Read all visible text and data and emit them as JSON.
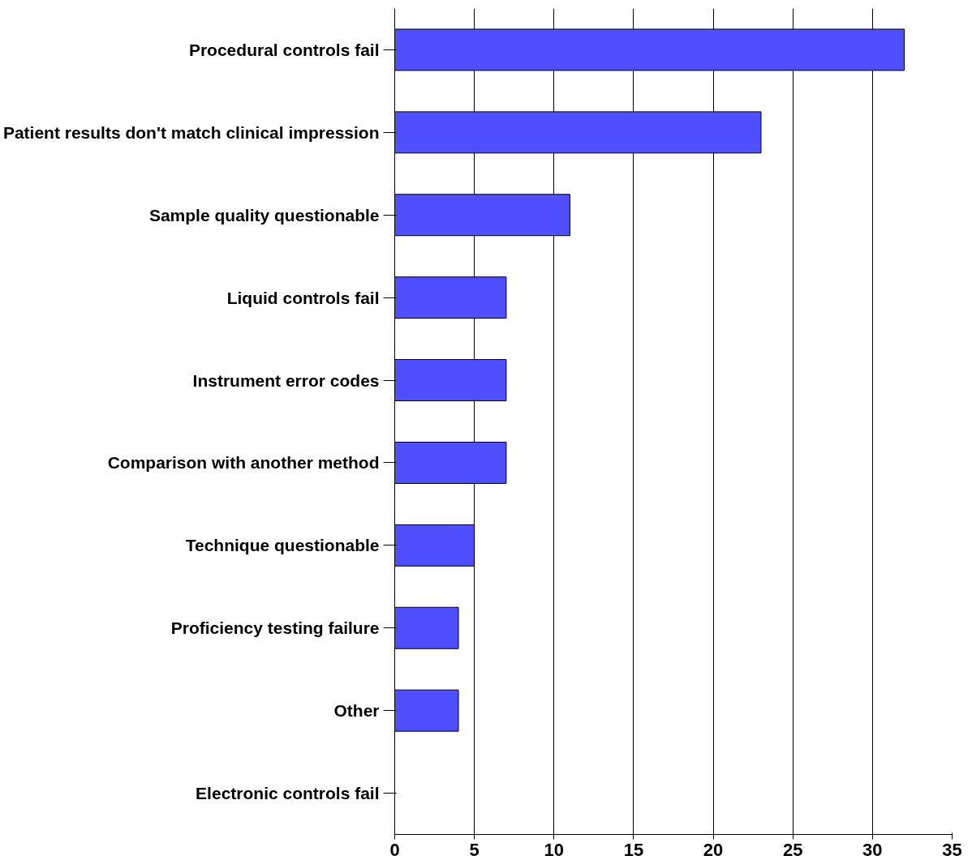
{
  "chart_data": {
    "type": "bar",
    "orientation": "horizontal",
    "categories": [
      "Procedural controls fail",
      "Patient results don't match clinical impression",
      "Sample quality questionable",
      "Liquid controls fail",
      "Instrument error codes",
      "Comparison with another method",
      "Technique questionable",
      "Proficiency testing failure",
      "Other",
      "Electronic controls fail"
    ],
    "values": [
      32,
      23,
      11,
      7,
      7,
      7,
      5,
      4,
      4,
      0
    ],
    "color": "#4f4fff",
    "xlim": [
      0,
      35
    ],
    "xticks": [
      0,
      5,
      10,
      15,
      20,
      25,
      30,
      35
    ],
    "grid": "x"
  }
}
